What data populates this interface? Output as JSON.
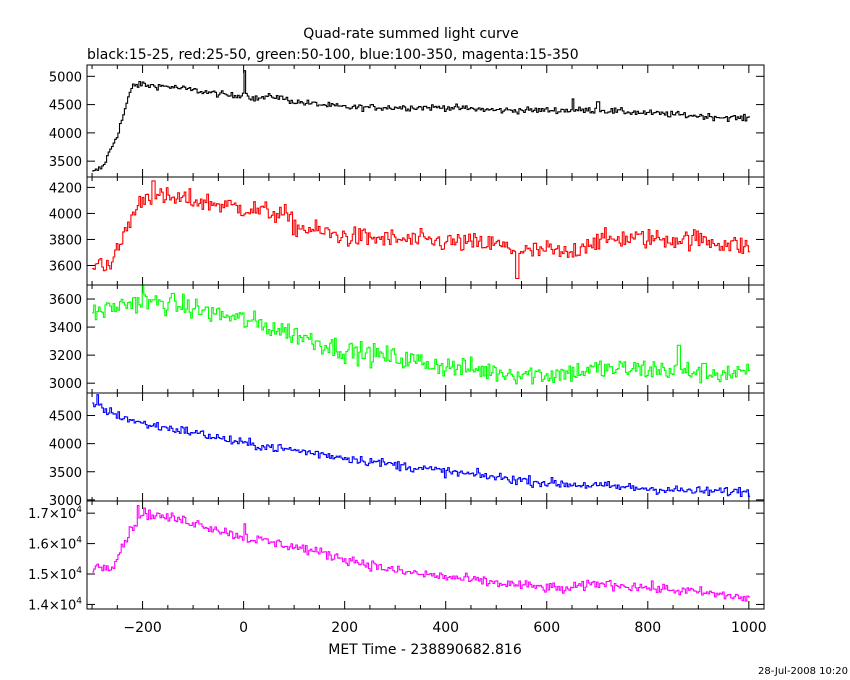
{
  "title": "Quad-rate summed light curve",
  "subtitle": "black:15-25, red:25-50, green:50-100, blue:100-350, magenta:15-350",
  "xlabel": "MET Time - 238890682.816",
  "footer": "28-Jul-2008 10:20",
  "chart_data": {
    "type": "line",
    "title": "Quad-rate summed light curve",
    "subtitle": "black:15-25, red:25-50, green:50-100, blue:100-350, magenta:15-350",
    "xlabel": "MET Time - 238890682.816",
    "xlim": [
      -310,
      1030
    ],
    "xticks": [
      -200,
      0,
      200,
      400,
      600,
      800,
      1000
    ],
    "xtick_labels": [
      "−200",
      "0",
      "200",
      "400",
      "600",
      "800",
      "1000"
    ],
    "grid": false,
    "panels": [
      {
        "band": "15-25",
        "color": "#000000",
        "ylim": [
          3220,
          5200
        ],
        "yticks": [
          3500,
          4000,
          4500,
          5000
        ],
        "ytick_labels": [
          "3500",
          "4000",
          "4500",
          "5000"
        ],
        "noise": 40,
        "keypoints": [
          [
            -300,
            3300
          ],
          [
            -280,
            3400
          ],
          [
            -250,
            4000
          ],
          [
            -230,
            4600
          ],
          [
            -220,
            4850
          ],
          [
            -150,
            4820
          ],
          [
            -60,
            4700
          ],
          [
            -20,
            4650
          ],
          [
            0,
            4700
          ],
          [
            20,
            4600
          ],
          [
            60,
            4650
          ],
          [
            100,
            4550
          ],
          [
            200,
            4450
          ],
          [
            400,
            4450
          ],
          [
            500,
            4400
          ],
          [
            600,
            4400
          ],
          [
            700,
            4400
          ],
          [
            800,
            4350
          ],
          [
            1000,
            4250
          ]
        ],
        "spikes": [
          [
            0,
            5100
          ],
          [
            -200,
            4900
          ],
          [
            650,
            4600
          ],
          [
            700,
            4550
          ]
        ]
      },
      {
        "band": "25-50",
        "color": "#ff0000",
        "ylim": [
          3450,
          4280
        ],
        "yticks": [
          3600,
          3800,
          4000,
          4200
        ],
        "ytick_labels": [
          "3600",
          "3800",
          "4000",
          "4200"
        ],
        "noise": 55,
        "keypoints": [
          [
            -300,
            3620
          ],
          [
            -260,
            3620
          ],
          [
            -230,
            3920
          ],
          [
            -200,
            4130
          ],
          [
            -100,
            4100
          ],
          [
            0,
            4040
          ],
          [
            80,
            3990
          ],
          [
            100,
            3900
          ],
          [
            200,
            3820
          ],
          [
            300,
            3800
          ],
          [
            400,
            3780
          ],
          [
            500,
            3760
          ],
          [
            550,
            3700
          ],
          [
            600,
            3720
          ],
          [
            640,
            3680
          ],
          [
            680,
            3780
          ],
          [
            750,
            3810
          ],
          [
            900,
            3800
          ],
          [
            1000,
            3740
          ]
        ],
        "spikes": [
          [
            -180,
            4250
          ],
          [
            540,
            3500
          ]
        ]
      },
      {
        "band": "50-100",
        "color": "#00ff00",
        "ylim": [
          2930,
          3700
        ],
        "yticks": [
          3000,
          3200,
          3400,
          3600
        ],
        "ytick_labels": [
          "3000",
          "3200",
          "3400",
          "3600"
        ],
        "noise": 55,
        "keypoints": [
          [
            -300,
            3500
          ],
          [
            -220,
            3580
          ],
          [
            -150,
            3570
          ],
          [
            -100,
            3530
          ],
          [
            0,
            3450
          ],
          [
            100,
            3350
          ],
          [
            200,
            3230
          ],
          [
            300,
            3180
          ],
          [
            400,
            3120
          ],
          [
            500,
            3080
          ],
          [
            600,
            3060
          ],
          [
            700,
            3100
          ],
          [
            800,
            3100
          ],
          [
            900,
            3080
          ],
          [
            1000,
            3060
          ]
        ],
        "spikes": [
          [
            -200,
            3690
          ],
          [
            860,
            3270
          ]
        ]
      },
      {
        "band": "100-350",
        "color": "#0000ff",
        "ylim": [
          2980,
          4900
        ],
        "yticks": [
          3000,
          3500,
          4000,
          4500
        ],
        "ytick_labels": [
          "3000",
          "3500",
          "4000",
          "4500"
        ],
        "noise": 60,
        "keypoints": [
          [
            -300,
            4700
          ],
          [
            -250,
            4500
          ],
          [
            -200,
            4350
          ],
          [
            -100,
            4200
          ],
          [
            0,
            4000
          ],
          [
            100,
            3880
          ],
          [
            200,
            3750
          ],
          [
            300,
            3620
          ],
          [
            400,
            3500
          ],
          [
            500,
            3400
          ],
          [
            600,
            3300
          ],
          [
            700,
            3250
          ],
          [
            800,
            3200
          ],
          [
            900,
            3150
          ],
          [
            1000,
            3150
          ]
        ],
        "spikes": [
          [
            -290,
            4870
          ]
        ]
      },
      {
        "band": "15-350",
        "color": "#ff00ff",
        "ylim": [
          13850,
          17400
        ],
        "yticks": [
          14000,
          15000,
          16000,
          17000
        ],
        "ytick_labels": [
          [
            "1.4",
            "10",
            "4"
          ],
          [
            "1.5",
            "10",
            "4"
          ],
          [
            "1.6",
            "10",
            "4"
          ],
          [
            "1.7",
            "10",
            "4"
          ]
        ],
        "noise": 120,
        "keypoints": [
          [
            -300,
            15200
          ],
          [
            -260,
            15300
          ],
          [
            -230,
            16300
          ],
          [
            -200,
            17000
          ],
          [
            -100,
            16700
          ],
          [
            0,
            16200
          ],
          [
            100,
            15900
          ],
          [
            200,
            15500
          ],
          [
            300,
            15100
          ],
          [
            400,
            14900
          ],
          [
            500,
            14700
          ],
          [
            600,
            14550
          ],
          [
            640,
            14500
          ],
          [
            700,
            14700
          ],
          [
            800,
            14550
          ],
          [
            900,
            14400
          ],
          [
            1000,
            14200
          ]
        ],
        "spikes": [
          [
            0,
            16650
          ],
          [
            -210,
            17250
          ]
        ]
      }
    ]
  }
}
